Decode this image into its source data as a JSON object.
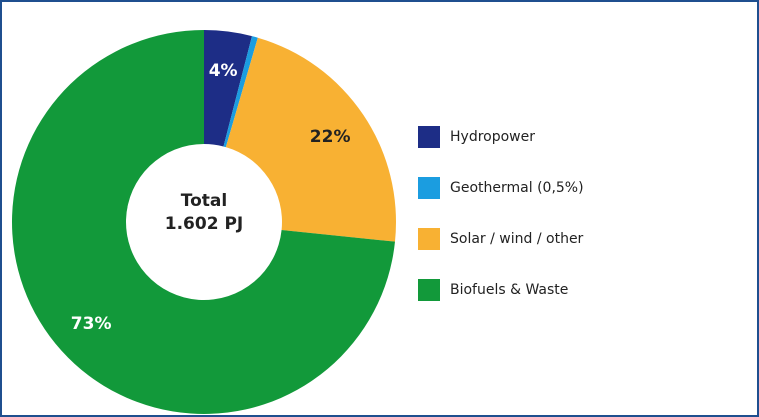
{
  "chart_data": {
    "type": "donut",
    "center_label": [
      "Total",
      "1.602 PJ"
    ],
    "categories": [
      "Hydropower",
      "Geothermal (0,5%)",
      "Solar / wind / other",
      "Biofuels & Waste"
    ],
    "values": [
      4,
      0.5,
      22,
      73
    ],
    "value_labels": [
      "4%",
      null,
      "22%",
      "73%"
    ],
    "colors": [
      "#1d2d86",
      "#1b9de0",
      "#f8b133",
      "#12993a"
    ],
    "legend": "right"
  }
}
